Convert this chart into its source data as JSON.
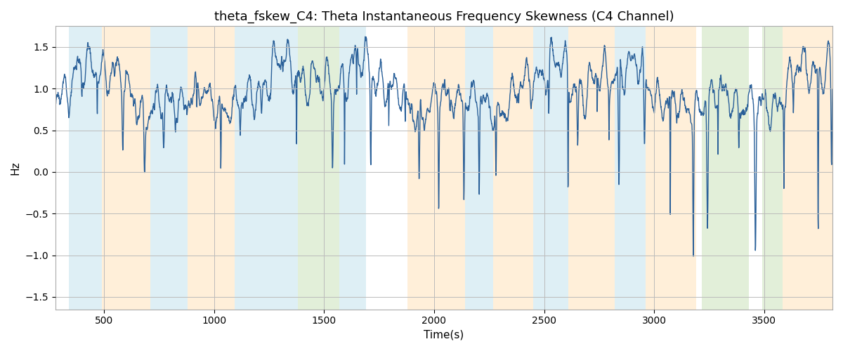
{
  "title": "theta_fskew_C4: Theta Instantaneous Frequency Skewness (C4 Channel)",
  "xlabel": "Time(s)",
  "ylabel": "Hz",
  "xlim": [
    280,
    3810
  ],
  "ylim": [
    -1.65,
    1.75
  ],
  "line_color": "#2a6099",
  "line_width": 1.0,
  "bg_color": "white",
  "grid_color": "#bbbbbb",
  "title_fontsize": 13,
  "axis_fontsize": 11,
  "shaded_regions": [
    {
      "xmin": 340,
      "xmax": 490,
      "color": "#add8e6",
      "alpha": 0.4
    },
    {
      "xmin": 490,
      "xmax": 710,
      "color": "#ffd9a0",
      "alpha": 0.4
    },
    {
      "xmin": 710,
      "xmax": 880,
      "color": "#add8e6",
      "alpha": 0.4
    },
    {
      "xmin": 880,
      "xmax": 1095,
      "color": "#ffd9a0",
      "alpha": 0.4
    },
    {
      "xmin": 1095,
      "xmax": 1380,
      "color": "#add8e6",
      "alpha": 0.4
    },
    {
      "xmin": 1380,
      "xmax": 1570,
      "color": "#b8d9a0",
      "alpha": 0.4
    },
    {
      "xmin": 1570,
      "xmax": 1690,
      "color": "#add8e6",
      "alpha": 0.4
    },
    {
      "xmin": 1880,
      "xmax": 2140,
      "color": "#ffd9a0",
      "alpha": 0.4
    },
    {
      "xmin": 2140,
      "xmax": 2270,
      "color": "#add8e6",
      "alpha": 0.4
    },
    {
      "xmin": 2270,
      "xmax": 2450,
      "color": "#ffd9a0",
      "alpha": 0.4
    },
    {
      "xmin": 2450,
      "xmax": 2610,
      "color": "#add8e6",
      "alpha": 0.4
    },
    {
      "xmin": 2610,
      "xmax": 2820,
      "color": "#ffd9a0",
      "alpha": 0.4
    },
    {
      "xmin": 2820,
      "xmax": 2960,
      "color": "#add8e6",
      "alpha": 0.4
    },
    {
      "xmin": 2960,
      "xmax": 3190,
      "color": "#ffd9a0",
      "alpha": 0.4
    },
    {
      "xmin": 3215,
      "xmax": 3430,
      "color": "#b8d9a0",
      "alpha": 0.4
    },
    {
      "xmin": 3490,
      "xmax": 3585,
      "color": "#b8d9a0",
      "alpha": 0.4
    },
    {
      "xmin": 3585,
      "xmax": 3810,
      "color": "#ffd9a0",
      "alpha": 0.4
    }
  ],
  "xticks": [
    500,
    1000,
    1500,
    2000,
    2500,
    3000,
    3500
  ],
  "yticks": [
    -1.5,
    -1.0,
    -0.5,
    0.0,
    0.5,
    1.0,
    1.5
  ]
}
